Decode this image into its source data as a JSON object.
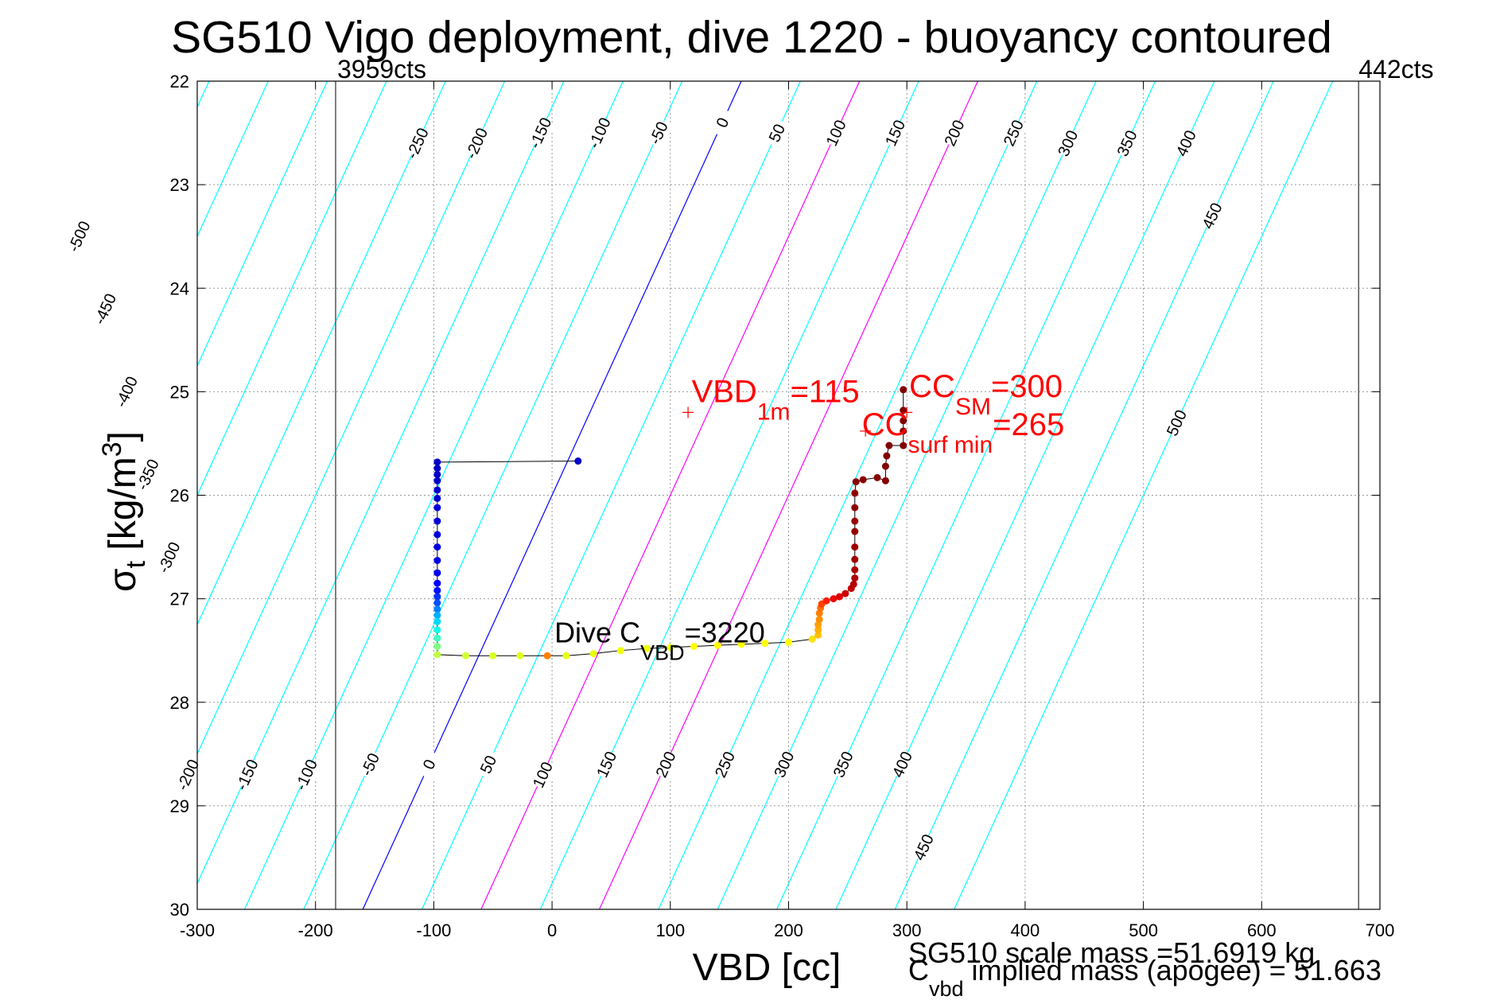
{
  "chart_data": {
    "type": "scatter",
    "title": "SG510 Vigo deployment, dive 1220 - buoyancy contoured",
    "xlabel": "VBD [cc]",
    "ylabel": {
      "base": "σ",
      "sub": "t",
      "rest": " [kg/m",
      "sup": "3",
      "end": "]"
    },
    "xlim": [
      -300,
      700
    ],
    "ylim": [
      22,
      30
    ],
    "y_reversed": true,
    "grid": true,
    "xticks": [
      -300,
      -200,
      -100,
      0,
      100,
      200,
      300,
      400,
      500,
      600,
      700
    ],
    "yticks": [
      22,
      23,
      24,
      25,
      26,
      27,
      28,
      29,
      30
    ],
    "vbd_limits": [
      {
        "x": -183,
        "label": "3959cts"
      },
      {
        "x": 682,
        "label": "442cts"
      }
    ],
    "contours": {
      "slope_per_sigma": -40,
      "ref_sigma": 26,
      "levels": [
        -500,
        -450,
        -400,
        -350,
        -300,
        -250,
        -200,
        -150,
        -100,
        -50,
        0,
        50,
        100,
        150,
        200,
        250,
        300,
        350,
        400,
        450,
        500
      ],
      "highlight": {
        "0": "#0000ff",
        "100": "#ff00ff",
        "200": "#ff00ff"
      },
      "default_color": "#00ffff",
      "top_labels": [
        {
          "level": -500,
          "sigma": 23.5
        },
        {
          "level": -450,
          "sigma": 24.2
        },
        {
          "level": -400,
          "sigma": 25.0
        },
        {
          "level": -350,
          "sigma": 25.8
        },
        {
          "level": -300,
          "sigma": 26.6
        },
        {
          "level": -250,
          "sigma": 22.6
        },
        {
          "level": -200,
          "sigma": 22.6
        },
        {
          "level": -150,
          "sigma": 22.5
        },
        {
          "level": -100,
          "sigma": 22.5
        },
        {
          "level": -50,
          "sigma": 22.5
        },
        {
          "level": 0,
          "sigma": 22.4
        },
        {
          "level": 50,
          "sigma": 22.5
        },
        {
          "level": 100,
          "sigma": 22.5
        },
        {
          "level": 150,
          "sigma": 22.5
        },
        {
          "level": 200,
          "sigma": 22.5
        },
        {
          "level": 250,
          "sigma": 22.5
        },
        {
          "level": 300,
          "sigma": 22.6
        },
        {
          "level": 350,
          "sigma": 22.6
        },
        {
          "level": 400,
          "sigma": 22.6
        },
        {
          "level": 450,
          "sigma": 23.3
        },
        {
          "level": 500,
          "sigma": 25.3
        }
      ],
      "bottom_labels": [
        {
          "level": -200,
          "sigma": 28.7
        },
        {
          "level": -150,
          "sigma": 28.7
        },
        {
          "level": -100,
          "sigma": 28.7
        },
        {
          "level": -50,
          "sigma": 28.6
        },
        {
          "level": 0,
          "sigma": 28.6
        },
        {
          "level": 50,
          "sigma": 28.6
        },
        {
          "level": 100,
          "sigma": 28.7
        },
        {
          "level": 150,
          "sigma": 28.6
        },
        {
          "level": 200,
          "sigma": 28.6
        },
        {
          "level": 250,
          "sigma": 28.6
        },
        {
          "level": 300,
          "sigma": 28.6
        },
        {
          "level": 350,
          "sigma": 28.6
        },
        {
          "level": 400,
          "sigma": 28.6
        },
        {
          "level": 450,
          "sigma": 29.4
        }
      ]
    },
    "profile": [
      {
        "x": 22,
        "y": 25.67,
        "c": "#0000c8"
      },
      {
        "x": -97,
        "y": 25.68,
        "c": "#0000c8"
      },
      {
        "x": -97,
        "y": 25.74,
        "c": "#0000c8"
      },
      {
        "x": -97,
        "y": 25.8,
        "c": "#0000c8"
      },
      {
        "x": -97,
        "y": 25.86,
        "c": "#0000c8"
      },
      {
        "x": -97,
        "y": 25.95,
        "c": "#0000d0"
      },
      {
        "x": -97,
        "y": 26.03,
        "c": "#0000d0"
      },
      {
        "x": -97,
        "y": 26.12,
        "c": "#0000d8"
      },
      {
        "x": -97,
        "y": 26.25,
        "c": "#0000d8"
      },
      {
        "x": -97,
        "y": 26.38,
        "c": "#0000e0"
      },
      {
        "x": -97,
        "y": 26.5,
        "c": "#0000e0"
      },
      {
        "x": -97,
        "y": 26.63,
        "c": "#0000e8"
      },
      {
        "x": -97,
        "y": 26.75,
        "c": "#0000f0"
      },
      {
        "x": -97,
        "y": 26.85,
        "c": "#0000ff"
      },
      {
        "x": -97,
        "y": 26.92,
        "c": "#0010ff"
      },
      {
        "x": -97,
        "y": 26.98,
        "c": "#0030ff"
      },
      {
        "x": -97,
        "y": 27.04,
        "c": "#0050ff"
      },
      {
        "x": -97,
        "y": 27.1,
        "c": "#0080ff"
      },
      {
        "x": -97,
        "y": 27.16,
        "c": "#00b0ff"
      },
      {
        "x": -97,
        "y": 27.22,
        "c": "#00d8ff"
      },
      {
        "x": -97,
        "y": 27.3,
        "c": "#10ffee"
      },
      {
        "x": -97,
        "y": 27.38,
        "c": "#40ffc0"
      },
      {
        "x": -97,
        "y": 27.46,
        "c": "#80ff80"
      },
      {
        "x": -97,
        "y": 27.54,
        "c": "#c0ff40"
      },
      {
        "x": -73,
        "y": 27.55,
        "c": "#d0ff30"
      },
      {
        "x": -50,
        "y": 27.55,
        "c": "#d8ff20"
      },
      {
        "x": -27,
        "y": 27.55,
        "c": "#e0ff20"
      },
      {
        "x": -4,
        "y": 27.55,
        "c": "#ff8000"
      },
      {
        "x": 12,
        "y": 27.55,
        "c": "#e8ff10"
      },
      {
        "x": 35,
        "y": 27.53,
        "c": "#e8ff10"
      },
      {
        "x": 58,
        "y": 27.5,
        "c": "#f0ff00"
      },
      {
        "x": 80,
        "y": 27.48,
        "c": "#f0ff00"
      },
      {
        "x": 100,
        "y": 27.47,
        "c": "#f0ff00"
      },
      {
        "x": 120,
        "y": 27.46,
        "c": "#ffff00"
      },
      {
        "x": 140,
        "y": 27.45,
        "c": "#ffff00"
      },
      {
        "x": 160,
        "y": 27.44,
        "c": "#ffff00"
      },
      {
        "x": 180,
        "y": 27.43,
        "c": "#ffff00"
      },
      {
        "x": 200,
        "y": 27.42,
        "c": "#ffff00"
      },
      {
        "x": 220,
        "y": 27.39,
        "c": "#ffe000"
      },
      {
        "x": 225,
        "y": 27.35,
        "c": "#ffc000"
      },
      {
        "x": 225,
        "y": 27.3,
        "c": "#ffb000"
      },
      {
        "x": 225,
        "y": 27.25,
        "c": "#ffa000"
      },
      {
        "x": 226,
        "y": 27.2,
        "c": "#ff9000"
      },
      {
        "x": 226,
        "y": 27.14,
        "c": "#ff8000"
      },
      {
        "x": 227,
        "y": 27.09,
        "c": "#ff7000"
      },
      {
        "x": 228,
        "y": 27.05,
        "c": "#ff4000"
      },
      {
        "x": 232,
        "y": 27.02,
        "c": "#ff2000"
      },
      {
        "x": 238,
        "y": 27.0,
        "c": "#f00000"
      },
      {
        "x": 243,
        "y": 26.98,
        "c": "#e00000"
      },
      {
        "x": 248,
        "y": 26.95,
        "c": "#d00000"
      },
      {
        "x": 253,
        "y": 26.9,
        "c": "#c00000"
      },
      {
        "x": 255,
        "y": 26.86,
        "c": "#b80000"
      },
      {
        "x": 256,
        "y": 26.8,
        "c": "#b00000"
      },
      {
        "x": 256,
        "y": 26.72,
        "c": "#a80000"
      },
      {
        "x": 256,
        "y": 26.62,
        "c": "#a00000"
      },
      {
        "x": 256,
        "y": 26.5,
        "c": "#a00000"
      },
      {
        "x": 256,
        "y": 26.35,
        "c": "#980000"
      },
      {
        "x": 256,
        "y": 26.25,
        "c": "#980000"
      },
      {
        "x": 256,
        "y": 26.12,
        "c": "#900000"
      },
      {
        "x": 256,
        "y": 25.98,
        "c": "#900000"
      },
      {
        "x": 257,
        "y": 25.87,
        "c": "#880000"
      },
      {
        "x": 263,
        "y": 25.85,
        "c": "#880000"
      },
      {
        "x": 275,
        "y": 25.83,
        "c": "#880000"
      },
      {
        "x": 282,
        "y": 25.86,
        "c": "#880000"
      },
      {
        "x": 282,
        "y": 25.72,
        "c": "#800000"
      },
      {
        "x": 283,
        "y": 25.62,
        "c": "#800000"
      },
      {
        "x": 285,
        "y": 25.52,
        "c": "#800000"
      },
      {
        "x": 297,
        "y": 25.52,
        "c": "#800000"
      },
      {
        "x": 297,
        "y": 25.38,
        "c": "#800000"
      },
      {
        "x": 297,
        "y": 25.28,
        "c": "#800000"
      },
      {
        "x": 297,
        "y": 25.18,
        "c": "#800000"
      },
      {
        "x": 297,
        "y": 24.98,
        "c": "#800000"
      }
    ],
    "markers": [
      {
        "x": 115,
        "y": 25.2
      },
      {
        "x": 300,
        "y": 25.2
      },
      {
        "x": 265,
        "y": 25.38
      }
    ],
    "annotations": {
      "vbd1m": {
        "pre": "VBD",
        "sub": "1m",
        "post": "=115",
        "x": 118,
        "y": 25.1
      },
      "ccsm": {
        "pre": "CC",
        "sub": "SM",
        "post": "=300",
        "x": 302,
        "y": 25.05
      },
      "ccsurf": {
        "pre": "CC",
        "sub": "surf min",
        "post": "=265",
        "x": 262,
        "y": 25.42
      },
      "divec": {
        "pre": "Dive C",
        "sub": "VBD",
        "post": "=3220",
        "x": 2,
        "y": 27.42
      }
    },
    "footer": {
      "scale_mass": "SG510 scale mass =51.6919 kg",
      "implied": {
        "pre": "C",
        "sub": "vbd",
        "post": " implied mass (apogee) = 51.663"
      }
    }
  }
}
